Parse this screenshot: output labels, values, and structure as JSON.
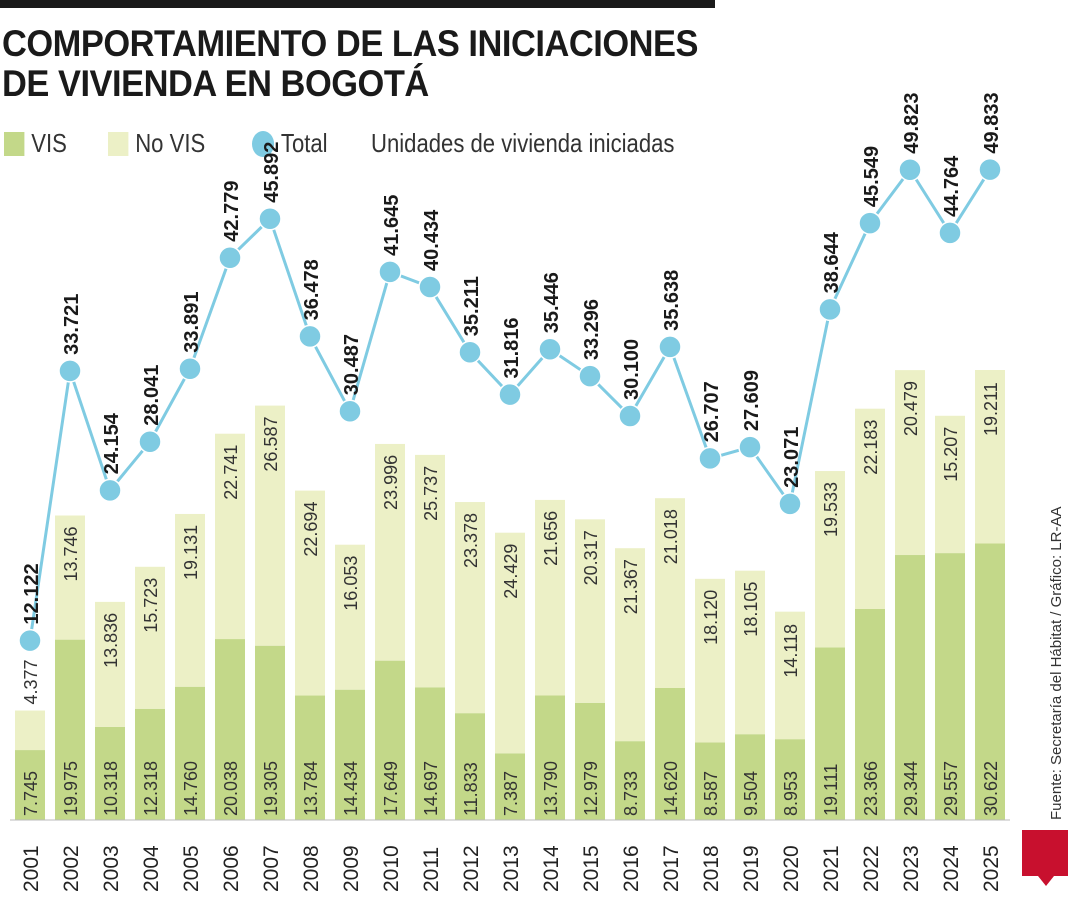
{
  "title": "COMPORTAMIENTO DE LAS INICIACIONES DE VIVIENDA EN BOGOTÁ",
  "legend": {
    "vis": "VIS",
    "novis": "No VIS",
    "total": "Total",
    "units": "Unidades de vivienda iniciadas"
  },
  "source": "Fuente: Secretaría del Hábitat / Gráfico: LR-AA",
  "logo": "LR",
  "colors": {
    "vis": "#c3d889",
    "novis": "#ecf0c6",
    "total": "#7fcbe2"
  },
  "chart_data": {
    "type": "bar",
    "stacked": true,
    "categories": [
      "2001",
      "2002",
      "2003",
      "2004",
      "2005",
      "2006",
      "2007",
      "2008",
      "2009",
      "2010",
      "2011",
      "2012",
      "2013",
      "2014",
      "2015",
      "2016",
      "2017",
      "2018",
      "2019",
      "2020",
      "2021",
      "2022",
      "2023",
      "2024",
      "2025"
    ],
    "series": [
      {
        "name": "VIS",
        "values": [
          7745,
          19975,
          10318,
          12318,
          14760,
          20038,
          19305,
          13784,
          14434,
          17649,
          14697,
          11833,
          7387,
          13790,
          12979,
          8733,
          14620,
          8587,
          9504,
          8953,
          19111,
          23366,
          29344,
          29557,
          30622
        ],
        "labels": [
          "7.745",
          "19.975",
          "10.318",
          "12.318",
          "14.760",
          "20.038",
          "19.305",
          "13.784",
          "14.434",
          "17.649",
          "14.697",
          "11.833",
          "7.387",
          "13.790",
          "12.979",
          "8.733",
          "14.620",
          "8.587",
          "9.504",
          "8.953",
          "19.111",
          "23.366",
          "29.344",
          "29.557",
          "30.622"
        ]
      },
      {
        "name": "No VIS",
        "values": [
          4377,
          13746,
          13836,
          15723,
          19131,
          22741,
          26587,
          22694,
          16053,
          23996,
          25737,
          23378,
          24429,
          21656,
          20317,
          21367,
          21018,
          18120,
          18105,
          14118,
          19533,
          22183,
          20479,
          15207,
          19211
        ],
        "labels": [
          "4.377",
          "13.746",
          "13.836",
          "15.723",
          "19.131",
          "22.741",
          "26.587",
          "22.694",
          "16.053",
          "23.996",
          "25.737",
          "23.378",
          "24.429",
          "21.656",
          "20.317",
          "21.367",
          "21.018",
          "18.120",
          "18.105",
          "14.118",
          "19.533",
          "22.183",
          "20.479",
          "15.207",
          "19.211"
        ]
      },
      {
        "name": "Total",
        "type": "line",
        "values": [
          12122,
          33721,
          24154,
          28041,
          33891,
          42779,
          45892,
          36478,
          30487,
          41645,
          40434,
          35211,
          31816,
          35446,
          33296,
          30100,
          35638,
          26707,
          27609,
          23071,
          38644,
          45549,
          49823,
          44764,
          49833
        ],
        "labels": [
          "12.122",
          "33.721",
          "24.154",
          "28.041",
          "33.891",
          "42.779",
          "45.892",
          "36.478",
          "30.487",
          "41.645",
          "40.434",
          "35.211",
          "31.816",
          "35.446",
          "33.296",
          "30.100",
          "35.638",
          "26.707",
          "27.609",
          "23.071",
          "38.644",
          "45.549",
          "49.823",
          "44.764",
          "49.833"
        ]
      }
    ],
    "grid": false,
    "legend_position": "top-left"
  }
}
